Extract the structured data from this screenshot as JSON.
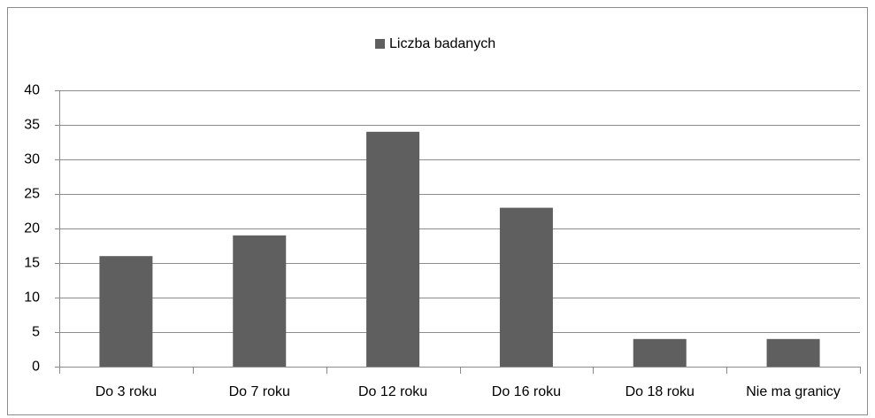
{
  "chart_data": {
    "type": "bar",
    "legend": "Liczba badanych",
    "legend_position": "top",
    "categories": [
      "Do 3 roku",
      "Do 7 roku",
      "Do 12 roku",
      "Do 16 roku",
      "Do 18 roku",
      "Nie ma granicy"
    ],
    "values": [
      16,
      19,
      34,
      23,
      4,
      4
    ],
    "color": "#5f5f5f",
    "ylim": [
      0,
      40
    ],
    "yticks": [
      0,
      5,
      10,
      15,
      20,
      25,
      30,
      35,
      40
    ],
    "grid": true
  }
}
